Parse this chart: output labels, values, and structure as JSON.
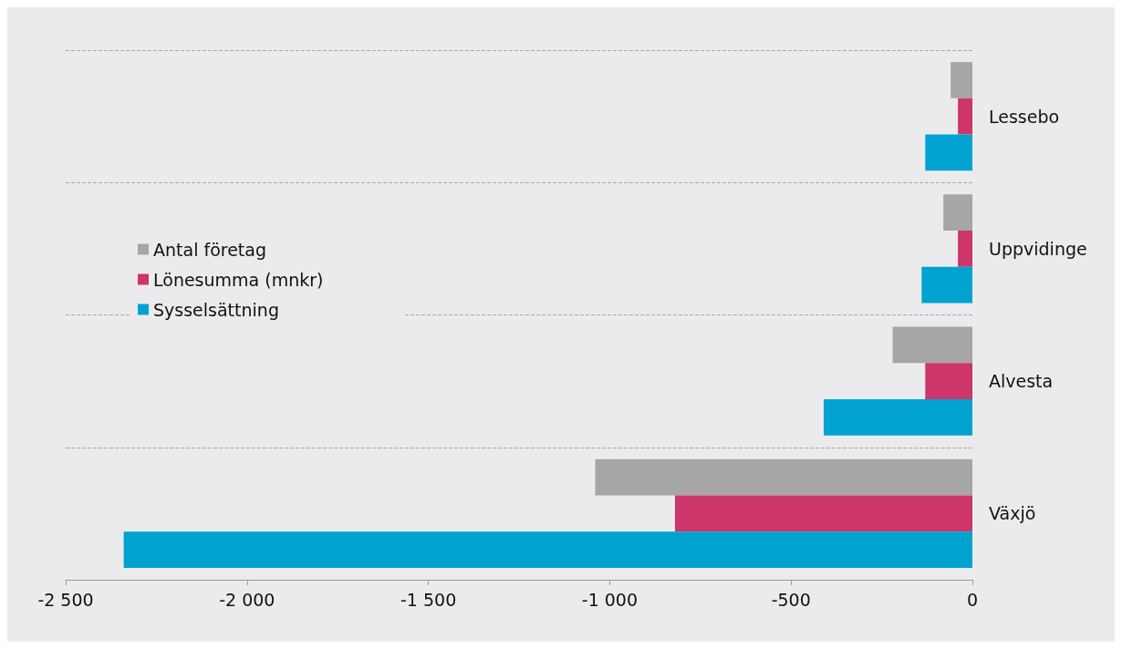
{
  "chart_data": {
    "type": "bar",
    "orientation": "horizontal",
    "categories": [
      "Lessebo",
      "Uppvidinge",
      "Alvesta",
      "Växjö"
    ],
    "series": [
      {
        "name": "Antal företag",
        "color": "#a6a6a6",
        "values": [
          -60,
          -80,
          -220,
          -1040
        ]
      },
      {
        "name": "Lönesumma (mnkr)",
        "color": "#cc366b",
        "values": [
          -40,
          -40,
          -130,
          -820
        ]
      },
      {
        "name": "Sysselsättning",
        "color": "#00a3cf",
        "values": [
          -130,
          -140,
          -410,
          -2340
        ]
      }
    ],
    "xlim": [
      -2500,
      0
    ],
    "xticks": [
      {
        "value": -2500,
        "label": "-2 500"
      },
      {
        "value": -2000,
        "label": "-2 000"
      },
      {
        "value": -1500,
        "label": "-1 500"
      },
      {
        "value": -1000,
        "label": "-1 000"
      },
      -500,
      0
    ],
    "grid": "y",
    "legend": "left"
  }
}
